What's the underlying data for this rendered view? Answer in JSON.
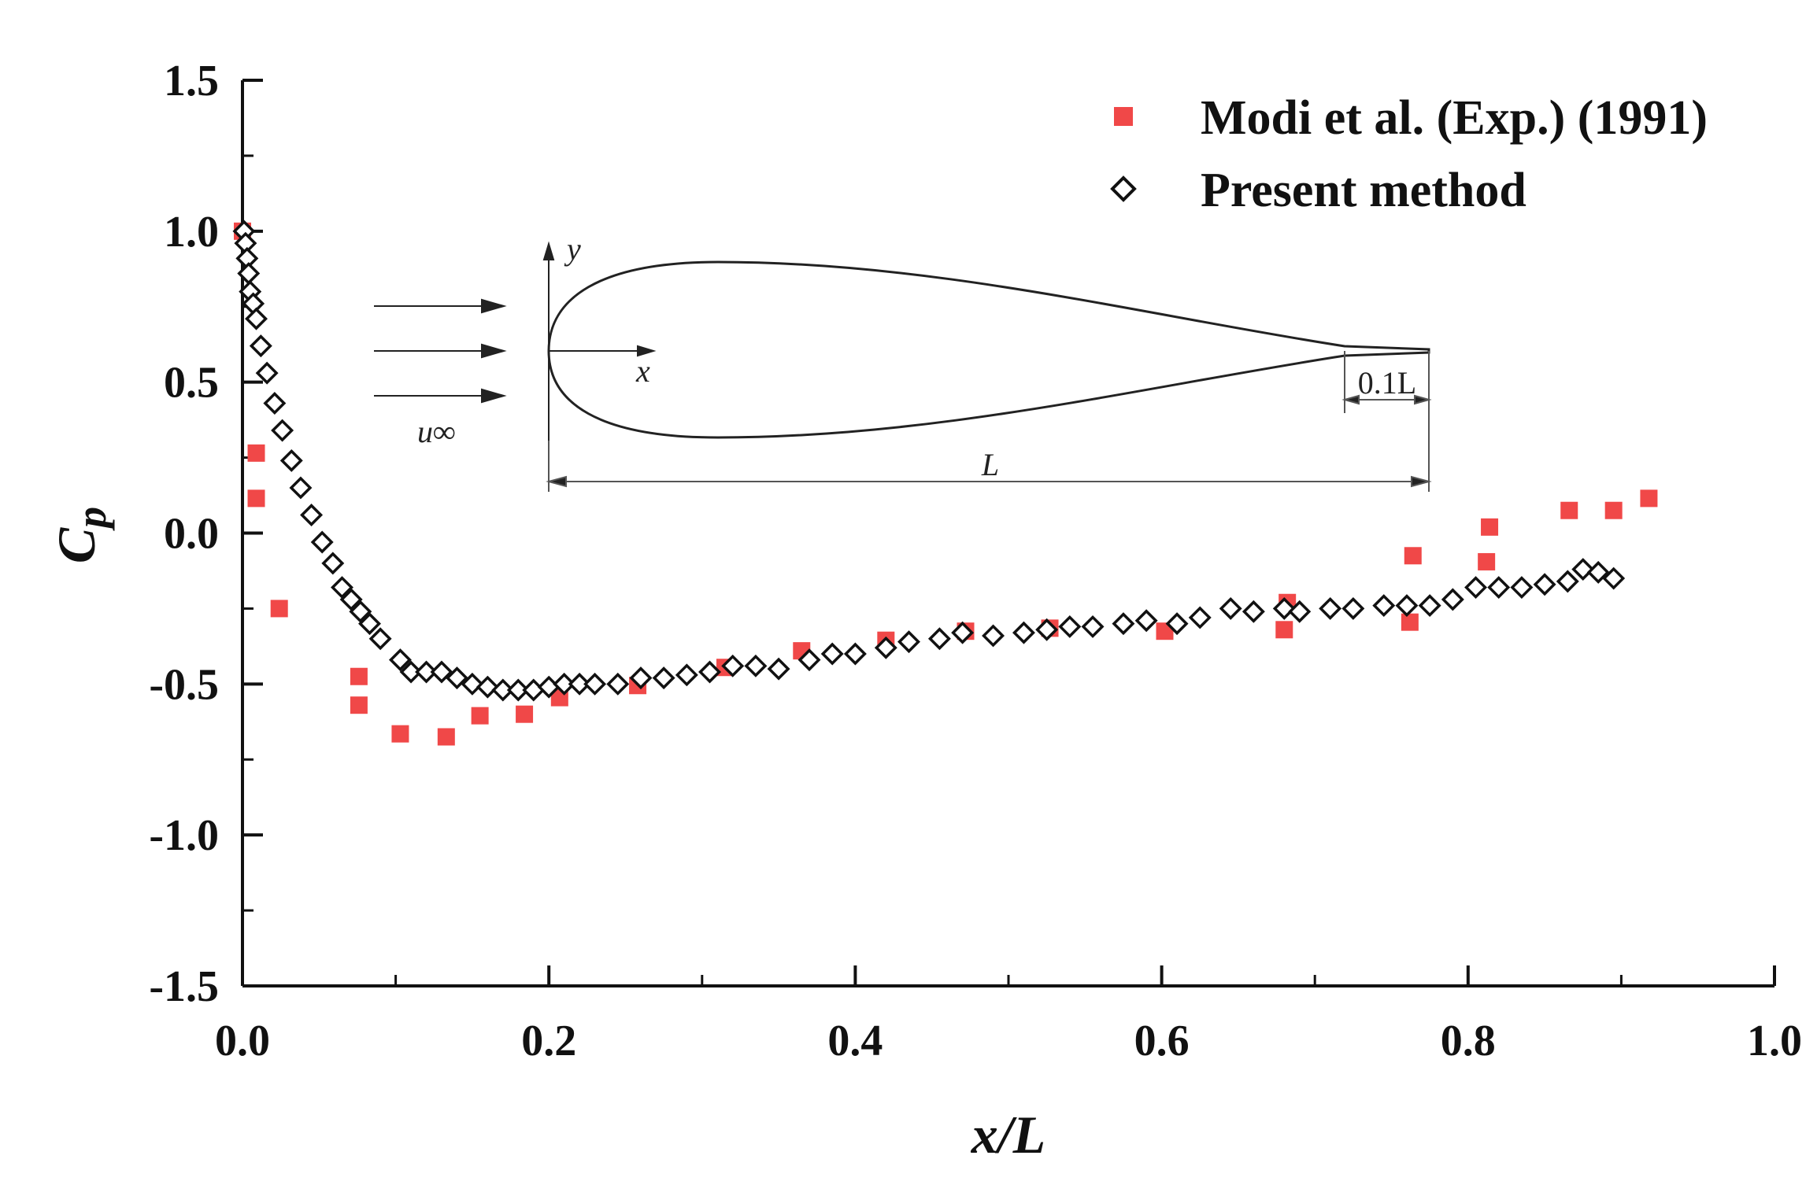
{
  "chart_data": {
    "type": "scatter",
    "title": "",
    "xlabel": "x/L",
    "ylabel_main": "C",
    "ylabel_sub": "p",
    "xlim": [
      0.0,
      1.0
    ],
    "ylim": [
      -1.5,
      1.5
    ],
    "x_ticks": [
      0.0,
      0.2,
      0.4,
      0.6,
      0.8,
      1.0
    ],
    "x_tick_labels": [
      "0.0",
      "0.2",
      "0.4",
      "0.6",
      "0.8",
      "1.0"
    ],
    "y_ticks": [
      1.5,
      1.0,
      0.5,
      0.0,
      -0.5,
      -1.0,
      -1.5
    ],
    "y_tick_labels": [
      "1.5",
      "1.0",
      "0.5",
      "0.0",
      "-0.5",
      "-1.0",
      "-1.5"
    ],
    "grid": false,
    "legend_position": "top-right",
    "series": [
      {
        "name": "Modi et al. (Exp.) (1991)",
        "marker": "square",
        "color": "#f04848",
        "x": [
          0.0,
          0.009,
          0.009,
          0.024,
          0.076,
          0.076,
          0.103,
          0.133,
          0.155,
          0.184,
          0.207,
          0.258,
          0.315,
          0.365,
          0.42,
          0.472,
          0.527,
          0.602,
          0.68,
          0.682,
          0.762,
          0.764,
          0.812,
          0.814,
          0.866,
          0.895,
          0.918
        ],
        "y": [
          1.0,
          0.265,
          0.115,
          -0.25,
          -0.475,
          -0.57,
          -0.665,
          -0.675,
          -0.605,
          -0.6,
          -0.545,
          -0.505,
          -0.445,
          -0.39,
          -0.355,
          -0.325,
          -0.315,
          -0.325,
          -0.32,
          -0.23,
          -0.295,
          -0.075,
          -0.095,
          0.02,
          0.075,
          0.075,
          0.115
        ]
      },
      {
        "name": "Present method",
        "marker": "diamond",
        "color": "#111111",
        "x": [
          0.001,
          0.002,
          0.003,
          0.004,
          0.005,
          0.007,
          0.009,
          0.012,
          0.016,
          0.021,
          0.026,
          0.032,
          0.038,
          0.045,
          0.052,
          0.059,
          0.065,
          0.071,
          0.077,
          0.083,
          0.09,
          0.103,
          0.11,
          0.12,
          0.13,
          0.14,
          0.15,
          0.16,
          0.17,
          0.18,
          0.19,
          0.2,
          0.21,
          0.22,
          0.23,
          0.245,
          0.26,
          0.275,
          0.29,
          0.305,
          0.32,
          0.335,
          0.35,
          0.37,
          0.385,
          0.4,
          0.42,
          0.435,
          0.455,
          0.47,
          0.49,
          0.51,
          0.525,
          0.54,
          0.555,
          0.575,
          0.59,
          0.61,
          0.625,
          0.645,
          0.66,
          0.68,
          0.69,
          0.71,
          0.725,
          0.745,
          0.76,
          0.775,
          0.79,
          0.805,
          0.82,
          0.835,
          0.85,
          0.865,
          0.875,
          0.885,
          0.895
        ],
        "y": [
          1.0,
          0.96,
          0.91,
          0.86,
          0.8,
          0.76,
          0.71,
          0.62,
          0.53,
          0.43,
          0.34,
          0.24,
          0.15,
          0.06,
          -0.03,
          -0.1,
          -0.18,
          -0.22,
          -0.26,
          -0.3,
          -0.35,
          -0.42,
          -0.46,
          -0.46,
          -0.46,
          -0.48,
          -0.5,
          -0.51,
          -0.52,
          -0.52,
          -0.52,
          -0.51,
          -0.5,
          -0.5,
          -0.5,
          -0.5,
          -0.48,
          -0.48,
          -0.47,
          -0.46,
          -0.44,
          -0.44,
          -0.45,
          -0.42,
          -0.4,
          -0.4,
          -0.38,
          -0.36,
          -0.35,
          -0.33,
          -0.34,
          -0.33,
          -0.32,
          -0.31,
          -0.31,
          -0.3,
          -0.29,
          -0.3,
          -0.28,
          -0.25,
          -0.26,
          -0.25,
          -0.26,
          -0.25,
          -0.25,
          -0.24,
          -0.24,
          -0.24,
          -0.22,
          -0.18,
          -0.18,
          -0.18,
          -0.17,
          -0.16,
          -0.12,
          -0.13,
          -0.15
        ]
      }
    ],
    "inset": {
      "description": "body profile schematic",
      "flow_label": "u∞",
      "x_axis_label": "x",
      "y_axis_label": "y",
      "length_label": "L",
      "tail_label": "0.1L"
    }
  }
}
